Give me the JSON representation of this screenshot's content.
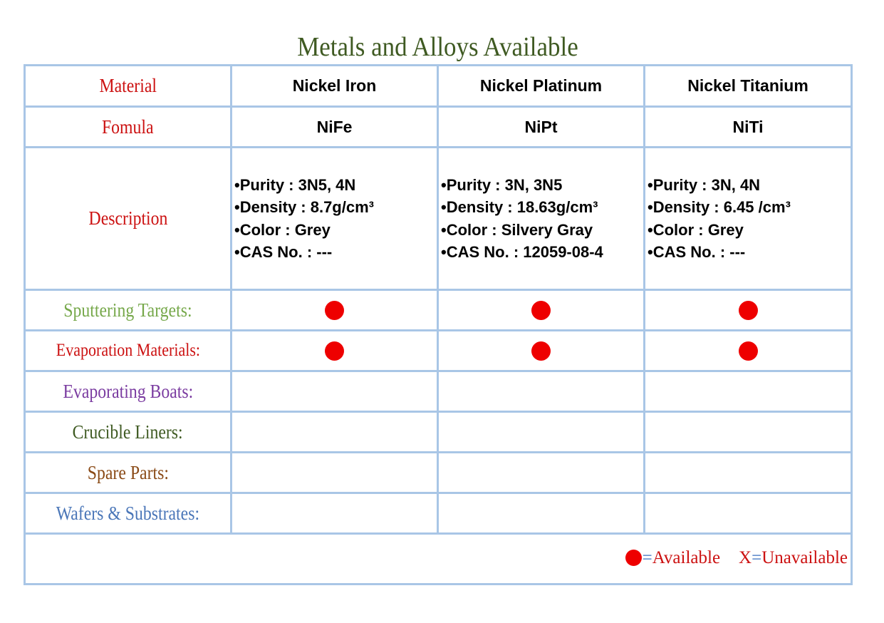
{
  "title": "Metals and Alloys Available",
  "colors": {
    "available_dot": "#ee0000",
    "grid_border": "#a9c6e6",
    "title_color": "#3f5a22"
  },
  "row_labels": {
    "material": "Material",
    "formula": "Fomula",
    "description": "Description",
    "sputtering_targets": "Sputtering Targets:",
    "evaporation_materials": "Evaporation Materials:",
    "evaporating_boats": "Evaporating Boats:",
    "crucible_liners": "Crucible Liners:",
    "spare_parts": "Spare Parts:",
    "wafers_substrates": "Wafers & Substrates:"
  },
  "materials": [
    {
      "name": "Nickel Iron",
      "formula": "NiFe",
      "description": [
        "•Purity : 3N5, 4N",
        "•Density : 8.7g/cm³",
        "•Color : Grey",
        "•CAS No. : ---"
      ],
      "sputtering_targets": true,
      "evaporation_materials": true
    },
    {
      "name": "Nickel Platinum",
      "formula": "NiPt",
      "description": [
        "•Purity : 3N, 3N5",
        "•Density : 18.63g/cm³",
        "•Color : Silvery Gray",
        "•CAS No. : 12059-08-4"
      ],
      "sputtering_targets": true,
      "evaporation_materials": true
    },
    {
      "name": "Nickel Titanium",
      "formula": "NiTi",
      "description": [
        "•Purity : 3N, 4N",
        "•Density : 6.45 /cm³",
        "•Color : Grey",
        "•CAS No. : ---"
      ],
      "sputtering_targets": true,
      "evaporation_materials": true
    }
  ],
  "legend": {
    "available_eq": "=",
    "available_text": "Available",
    "unavailable_x": "X",
    "unavailable_eq": "=",
    "unavailable_text": "Unavailable"
  }
}
